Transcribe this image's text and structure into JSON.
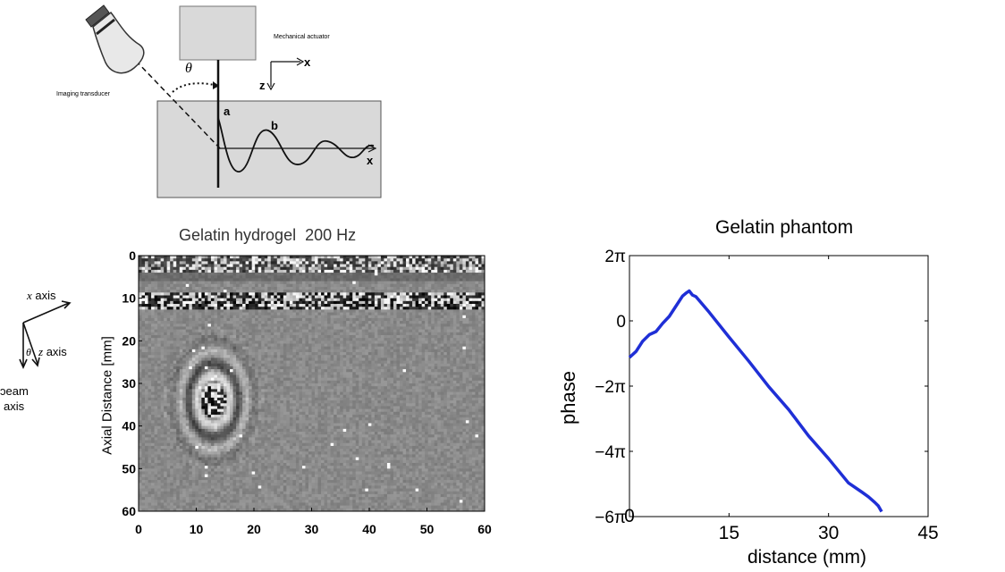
{
  "schematic": {
    "actuator_label": "Mechanical actuator",
    "transducer_label": "Imaging transducer",
    "theta_symbol": "θ",
    "axis_x": "x",
    "axis_z": "z",
    "point_a": "a",
    "point_b": "b",
    "wave_axis_x": "x"
  },
  "axes_legend": {
    "x_axis_symbol": "x",
    "x_axis_word": "axis",
    "z_axis_symbol": "z",
    "z_axis_word": "axis",
    "theta_symbol": "θ",
    "beam_line1": "ɔeam",
    "beam_line2": "axis"
  },
  "heatmap": {
    "title": "Gelatin hydrogel  200 Hz",
    "ylabel": "Axial Distance [mm]",
    "xticks": [
      "0",
      "10",
      "20",
      "30",
      "40",
      "50",
      "60"
    ],
    "yticks": [
      "0",
      "10",
      "20",
      "30",
      "40",
      "50",
      "60"
    ]
  },
  "chart_data": [
    {
      "type": "heatmap",
      "title": "Gelatin hydrogel  200 Hz",
      "xlabel": "",
      "ylabel": "Axial Distance [mm]",
      "xlim": [
        0,
        60
      ],
      "ylim": [
        0,
        60
      ],
      "colormap": "grayscale"
    },
    {
      "type": "line",
      "title": "Gelatin phantom",
      "xlabel": "distance (mm)",
      "ylabel": "phase",
      "xlim": [
        0,
        45
      ],
      "ylim": [
        -6,
        2
      ],
      "y_unit": "π",
      "xticks": [
        "0",
        "15",
        "30",
        "45"
      ],
      "yticks": [
        "2π",
        "0",
        "−2π",
        "−4π",
        "−6π"
      ],
      "series": [
        {
          "color": "#1f2fd6",
          "x": [
            0,
            1,
            2,
            3,
            4,
            5,
            6,
            7,
            8,
            8.5,
            9,
            9.5,
            10,
            12,
            15,
            18,
            21,
            24,
            27,
            30,
            33,
            35,
            36,
            37,
            37.5,
            38
          ],
          "y": [
            -1.12,
            -0.95,
            -0.6,
            -0.45,
            -0.3,
            -0.1,
            0.15,
            0.45,
            0.75,
            0.87,
            0.89,
            0.82,
            0.72,
            0.28,
            -0.5,
            -1.25,
            -2.0,
            -2.75,
            -3.5,
            -4.25,
            -4.95,
            -5.25,
            -5.4,
            -5.55,
            -5.7,
            -5.82
          ]
        }
      ]
    }
  ],
  "line_chart_labels": {
    "title": "Gelatin phantom",
    "xlabel": "distance (mm)",
    "ylabel": "phase",
    "xticks": [
      "0",
      "15",
      "30",
      "45"
    ],
    "yticks": [
      "2π",
      "0",
      "−2π",
      "−4π",
      "−6π"
    ]
  }
}
